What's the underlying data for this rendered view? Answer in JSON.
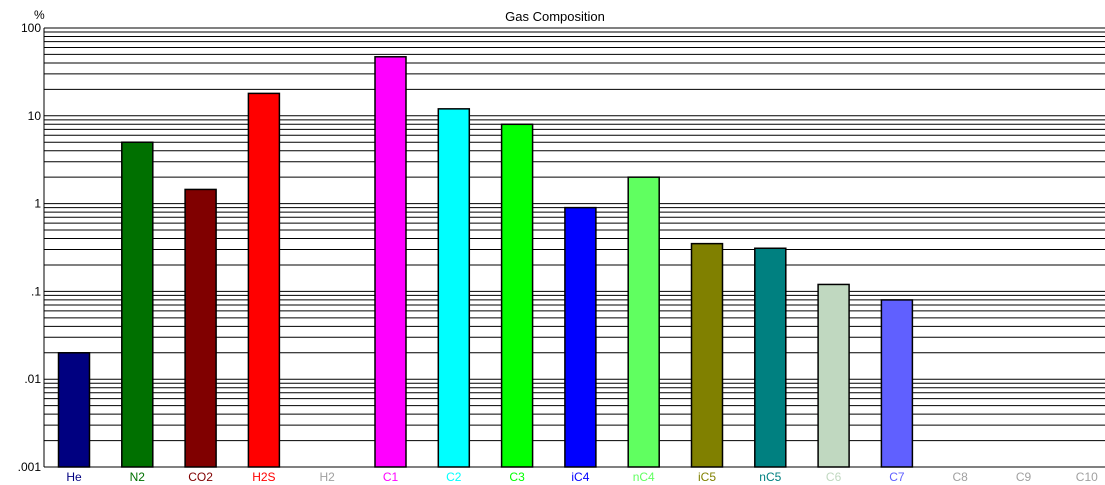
{
  "chart_data": {
    "type": "bar",
    "title": "Gas Composition",
    "ylabel": "%",
    "yscale": "log",
    "ylim": [
      0.001,
      100
    ],
    "ytick_labels": [
      "100",
      "10",
      "1",
      ".1",
      ".01",
      ".001"
    ],
    "grid": true,
    "categories": [
      "He",
      "N2",
      "CO2",
      "H2S",
      "H2",
      "C1",
      "C2",
      "C3",
      "iC4",
      "nC4",
      "iC5",
      "nC5",
      "C6",
      "C7",
      "C8",
      "C9",
      "C10"
    ],
    "values": [
      0.02,
      5.0,
      1.45,
      18.0,
      null,
      47.0,
      12.0,
      8.0,
      0.9,
      2.0,
      0.35,
      0.31,
      0.12,
      0.08,
      null,
      null,
      null
    ],
    "colors": [
      "#000080",
      "#007000",
      "#800000",
      "#ff0000",
      "#a0a0a0",
      "#ff00ff",
      "#00ffff",
      "#00ff00",
      "#0000ff",
      "#60ff60",
      "#808000",
      "#008080",
      "#c0d8c0",
      "#6060ff",
      "#a0a0a0",
      "#a0a0a0",
      "#a0a0a0"
    ]
  }
}
